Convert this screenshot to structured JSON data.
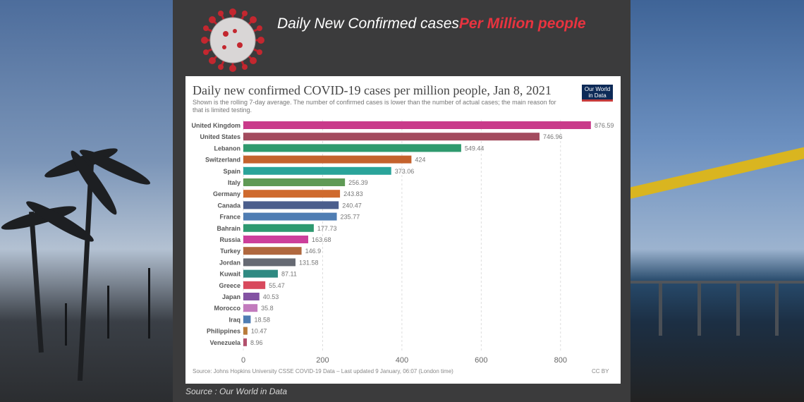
{
  "banner": {
    "headline_part1": "Daily New Confirmed cases",
    "headline_part2": "Per Million people",
    "credit": "Source : Our World in Data"
  },
  "chart_meta": {
    "source_note": "Source: Johns Hopkins University CSSE COVID-19 Data – Last updated 9 January, 06:07 (London time)",
    "license": "CC BY",
    "logo_line1": "Our World",
    "logo_line2": "in Data"
  },
  "chart_data": {
    "type": "bar",
    "orientation": "horizontal",
    "title": "Daily new confirmed COVID-19 cases per million people, Jan 8, 2021",
    "subtitle": "Shown is the rolling 7-day average. The number of confirmed cases is lower than the number of actual cases; the main reason for that is limited testing.",
    "categories": [
      "United Kingdom",
      "United States",
      "Lebanon",
      "Switzerland",
      "Spain",
      "Italy",
      "Germany",
      "Canada",
      "France",
      "Bahrain",
      "Russia",
      "Turkey",
      "Jordan",
      "Kuwait",
      "Greece",
      "Japan",
      "Morocco",
      "Iraq",
      "Philippines",
      "Venezuela"
    ],
    "values": [
      876.59,
      746.96,
      549.44,
      424,
      373.06,
      256.39,
      243.83,
      240.47,
      235.77,
      177.73,
      163.68,
      146.9,
      131.58,
      87.11,
      55.47,
      40.53,
      35.8,
      18.58,
      10.47,
      8.96
    ],
    "value_labels": [
      "876.59",
      "746.96",
      "549.44",
      "424",
      "373.06",
      "256.39",
      "243.83",
      "240.47",
      "235.77",
      "177.73",
      "163.68",
      "146.9",
      "131.58",
      "87.11",
      "55.47",
      "40.53",
      "35.8",
      "18.58",
      "10.47",
      "8.96"
    ],
    "colors": [
      "#c93a8a",
      "#a34b5e",
      "#2f9a6e",
      "#c4622d",
      "#2aa49a",
      "#5f9a55",
      "#cf6a2e",
      "#4b5e8c",
      "#4f7db3",
      "#2e9970",
      "#cc3f9b",
      "#b0683e",
      "#666a73",
      "#2f8a82",
      "#d8495c",
      "#8352a3",
      "#c27bbd",
      "#4f7db3",
      "#b87a39",
      "#b2506c"
    ],
    "x_ticks": [
      0,
      200,
      400,
      600,
      800
    ],
    "x_tick_labels": [
      "0",
      "200",
      "400",
      "600",
      "800"
    ],
    "xlim": [
      0,
      900
    ],
    "grid": true
  }
}
